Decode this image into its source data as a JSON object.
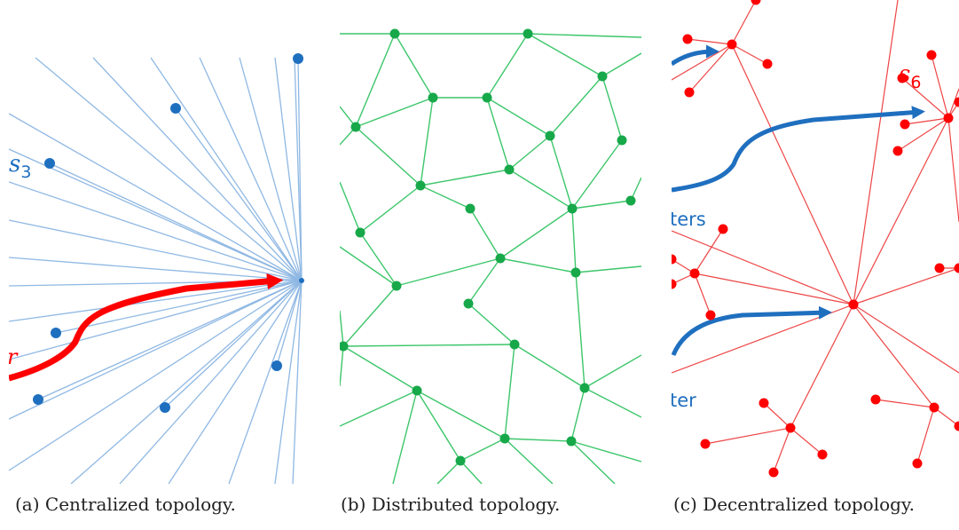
{
  "panels": {
    "centralized": {
      "caption": "(a) Centralized topology.",
      "node_label": "s",
      "node_label_sub": "3",
      "fragment_label": "r",
      "colors": {
        "edge": "#8fb8e3",
        "node": "#1f6fbf",
        "arrow": "#ff0000"
      }
    },
    "distributed": {
      "caption": "(b) Distributed topology.",
      "colors": {
        "edge": "#3cc66a",
        "node": "#17a84a"
      }
    },
    "decentralized": {
      "caption": "(c) Decentralized topology.",
      "node_label": "s",
      "node_label_sub": "6",
      "fragment_label_1": "ters",
      "fragment_label_2": "ter",
      "colors": {
        "edge": "#ee4444",
        "node": "#ff0000",
        "arrow": "#1f6fbf"
      }
    }
  }
}
